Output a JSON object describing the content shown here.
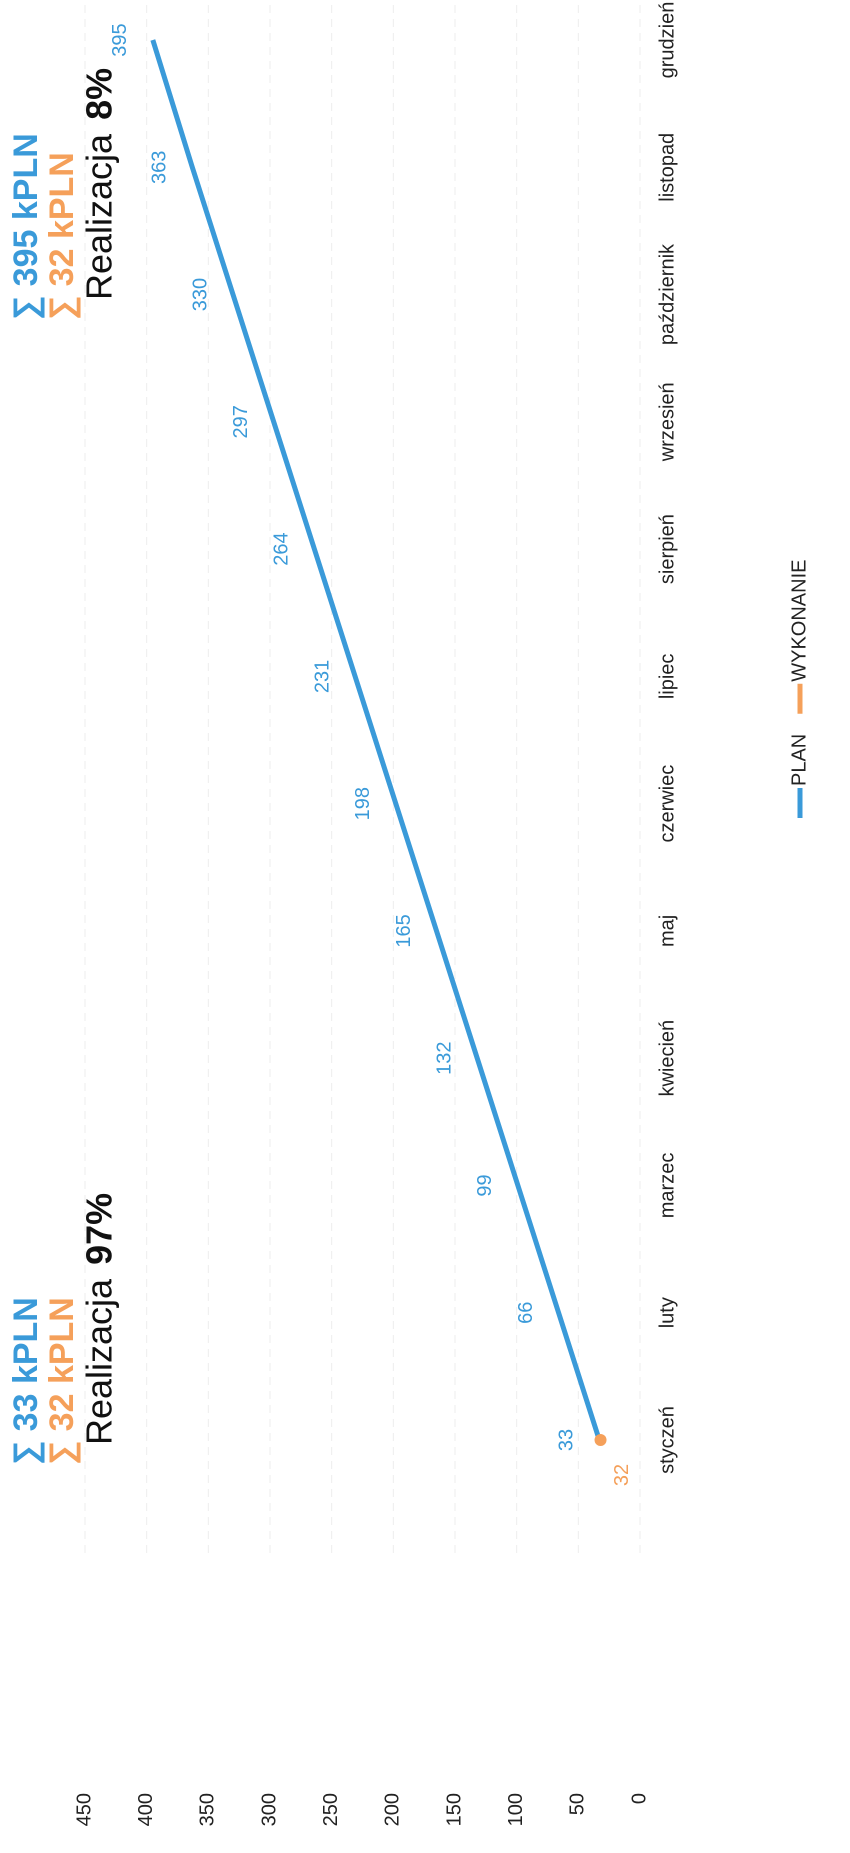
{
  "chart_data": {
    "type": "line",
    "categories": [
      "styczeń",
      "luty",
      "marzec",
      "kwiecień",
      "maj",
      "czerwiec",
      "lipiec",
      "sierpień",
      "wrzesień",
      "październik",
      "listopad",
      "grudzień"
    ],
    "series": [
      {
        "name": "PLAN",
        "color": "#3a9ad9",
        "values": [
          33,
          66,
          99,
          132,
          165,
          198,
          231,
          264,
          297,
          330,
          363,
          395
        ]
      },
      {
        "name": "WYKONANIE",
        "color": "#f5a05a",
        "values": [
          32,
          null,
          null,
          null,
          null,
          null,
          null,
          null,
          null,
          null,
          null,
          null
        ]
      }
    ],
    "ylim": [
      0,
      450
    ],
    "yticks": [
      0,
      50,
      100,
      150,
      200,
      250,
      300,
      350,
      400,
      450
    ],
    "grid": true,
    "annotations": [
      {
        "sum_plan": "∑ 33 kPLN",
        "sum_done": "∑ 32 kPLN",
        "label": "Realizacja",
        "pct": "97%"
      },
      {
        "sum_plan": "∑ 395 kPLN",
        "sum_done": "∑ 32 kPLN",
        "label": "Realizacja",
        "pct": "8%"
      }
    ]
  }
}
